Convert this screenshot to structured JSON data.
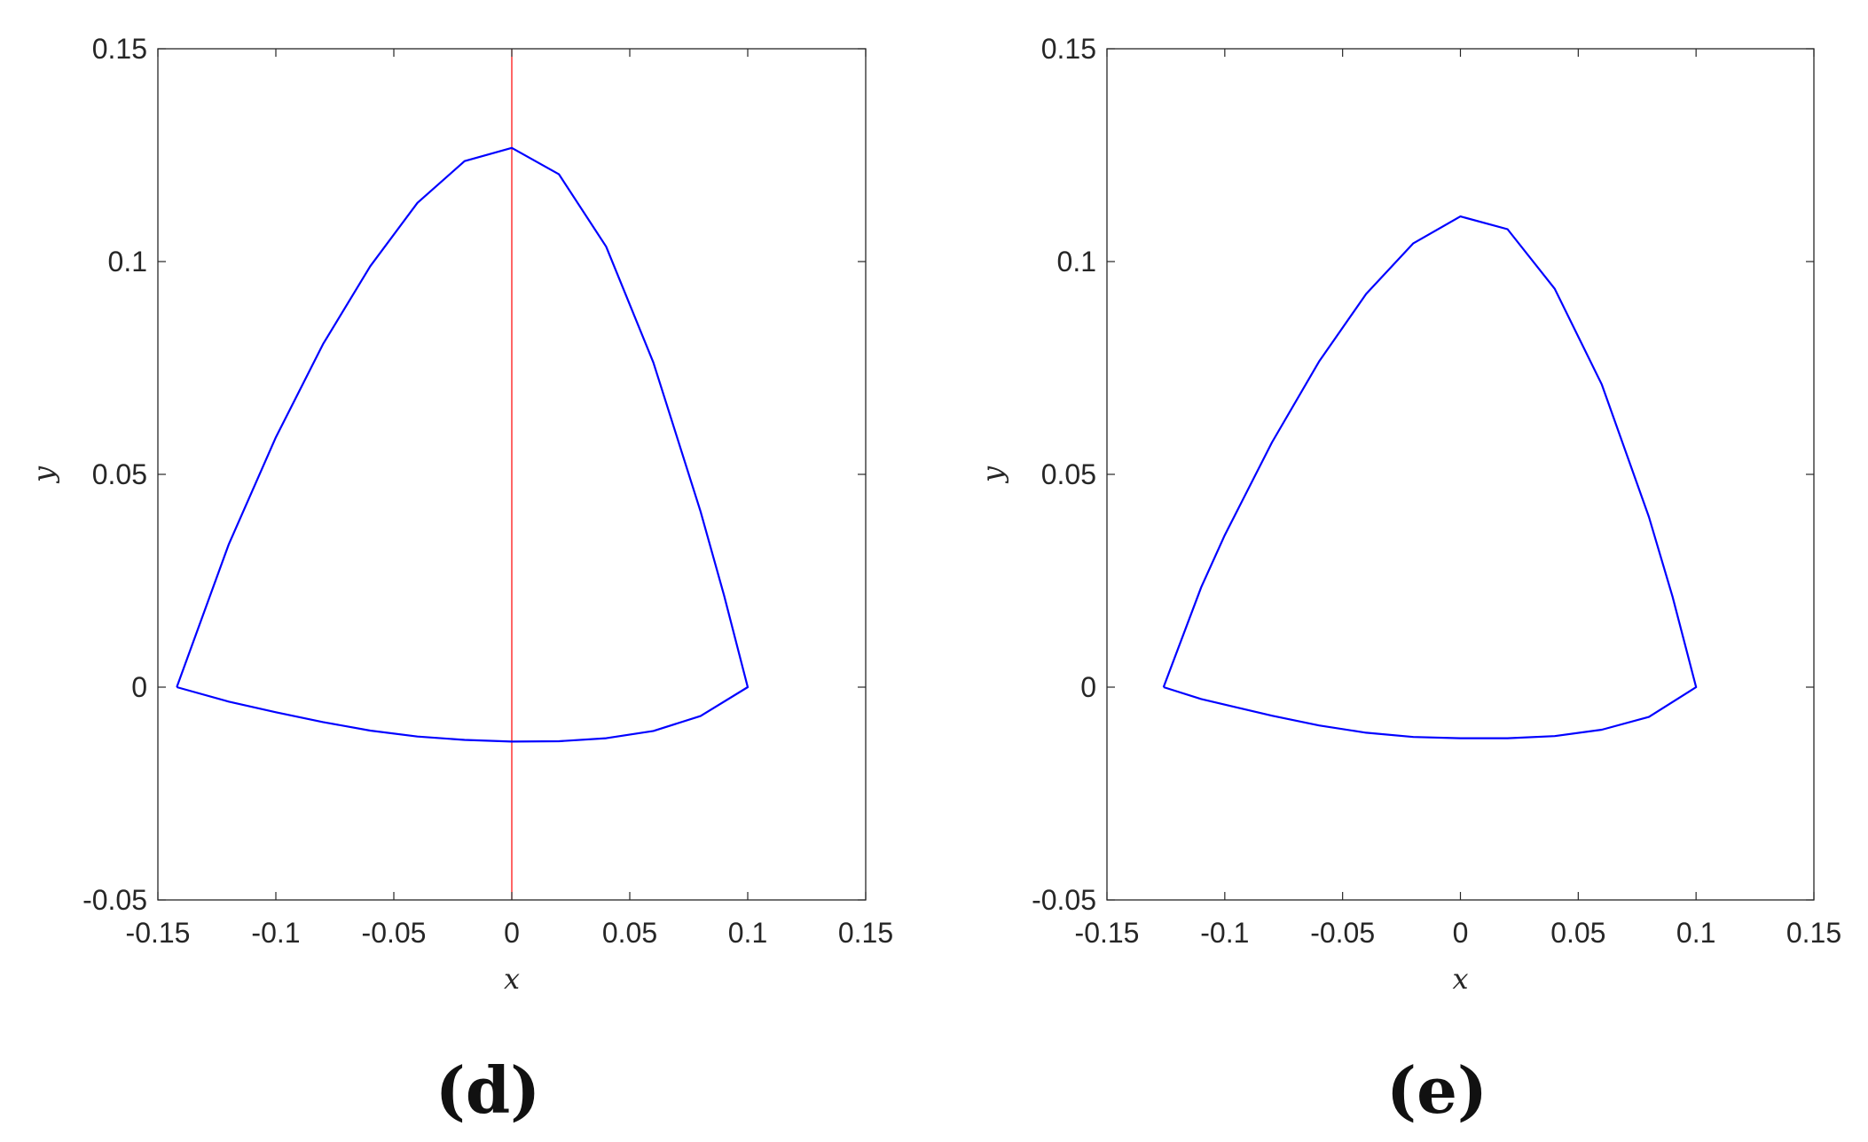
{
  "colors": {
    "curve": "#0000ff",
    "symmetry_line": "#ff0000",
    "axes": "#262626"
  },
  "chart_data": [
    {
      "type": "line",
      "panel_label": "(d)",
      "xlabel": "x",
      "ylabel": "y",
      "xlim": [
        -0.15,
        0.15
      ],
      "ylim": [
        -0.05,
        0.15
      ],
      "xticks": [
        -0.15,
        -0.1,
        -0.05,
        0,
        0.05,
        0.1,
        0.15
      ],
      "xtick_labels": [
        "-0.15",
        "-0.1",
        "-0.05",
        "0",
        "0.05",
        "0.1",
        "0.15"
      ],
      "yticks": [
        -0.05,
        0,
        0.05,
        0.1,
        0.15
      ],
      "ytick_labels": [
        "-0.05",
        "0",
        "0.05",
        "0.1",
        "0.15"
      ],
      "grid": false,
      "reference_lines": [
        {
          "orientation": "vertical",
          "x": 0,
          "color": "#ff0000"
        }
      ],
      "series": [
        {
          "color": "#0000ff",
          "x": [
            -0.142,
            -0.12,
            -0.1,
            -0.08,
            -0.06,
            -0.04,
            -0.02,
            0,
            0.02,
            0.04,
            0.06,
            0.08,
            0.09,
            0.1,
            0.1,
            0.08,
            0.06,
            0.04,
            0.02,
            0,
            -0.02,
            -0.04,
            -0.06,
            -0.08,
            -0.1,
            -0.12,
            -0.142
          ],
          "y": [
            0,
            0.0335,
            0.0587,
            0.0806,
            0.0989,
            0.1138,
            0.1236,
            0.1267,
            0.1205,
            0.1035,
            0.0763,
            0.0413,
            0.0215,
            0,
            0,
            -0.0068,
            -0.0103,
            -0.012,
            -0.0127,
            -0.0128,
            -0.0124,
            -0.0116,
            -0.0102,
            -0.0082,
            -0.0059,
            -0.0034,
            0
          ]
        }
      ]
    },
    {
      "type": "line",
      "panel_label": "(e)",
      "xlabel": "x",
      "ylabel": "y",
      "xlim": [
        -0.15,
        0.15
      ],
      "ylim": [
        -0.05,
        0.15
      ],
      "xticks": [
        -0.15,
        -0.1,
        -0.05,
        0,
        0.05,
        0.1,
        0.15
      ],
      "xtick_labels": [
        "-0.15",
        "-0.1",
        "-0.05",
        "0",
        "0.05",
        "0.1",
        "0.15"
      ],
      "yticks": [
        -0.05,
        0,
        0.05,
        0.1,
        0.15
      ],
      "ytick_labels": [
        "-0.05",
        "0",
        "0.05",
        "0.1",
        "0.15"
      ],
      "grid": false,
      "series": [
        {
          "color": "#0000ff",
          "x": [
            -0.126,
            -0.11,
            -0.1,
            -0.08,
            -0.06,
            -0.04,
            -0.02,
            0,
            0.02,
            0.04,
            0.06,
            0.08,
            0.09,
            0.1,
            0.1,
            0.08,
            0.06,
            0.04,
            0.02,
            0,
            -0.02,
            -0.04,
            -0.06,
            -0.08,
            -0.1,
            -0.11,
            -0.126
          ],
          "y": [
            0,
            0.0235,
            0.0357,
            0.0575,
            0.0765,
            0.0924,
            0.1043,
            0.1106,
            0.1076,
            0.0936,
            0.0711,
            0.04,
            0.0213,
            0,
            0,
            -0.007,
            -0.01,
            -0.0115,
            -0.012,
            -0.012,
            -0.0117,
            -0.0107,
            -0.009,
            -0.0067,
            -0.0041,
            -0.0028,
            0
          ]
        }
      ]
    }
  ]
}
